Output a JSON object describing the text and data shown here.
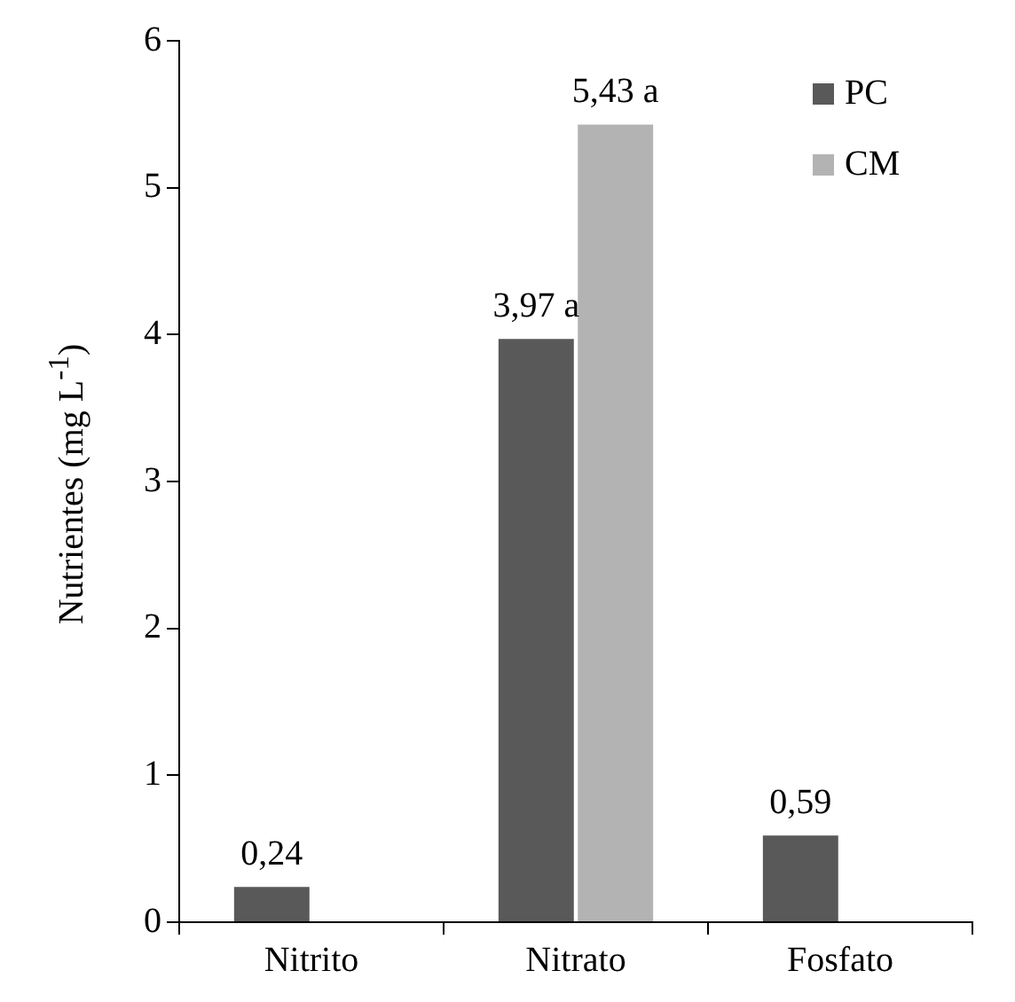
{
  "chart_data": {
    "type": "bar",
    "ylabel": "Nutrientes (mg L$^{-1}$)",
    "categories": [
      "Nitrito",
      "Nitrato",
      "Fosfato"
    ],
    "series": [
      {
        "name": "PC",
        "color": "#595959",
        "values": [
          0.24,
          3.97,
          0.59
        ],
        "value_labels": [
          "0,24",
          "3,97 a",
          "0,59"
        ]
      },
      {
        "name": "CM",
        "color": "#b3b3b3",
        "values": [
          null,
          5.43,
          null
        ],
        "value_labels": [
          null,
          "5,43 a",
          null
        ]
      }
    ],
    "ylim": [
      0,
      6
    ],
    "yticks": [
      0,
      1,
      2,
      3,
      4,
      5,
      6
    ],
    "grid": false,
    "legend": "top right"
  }
}
